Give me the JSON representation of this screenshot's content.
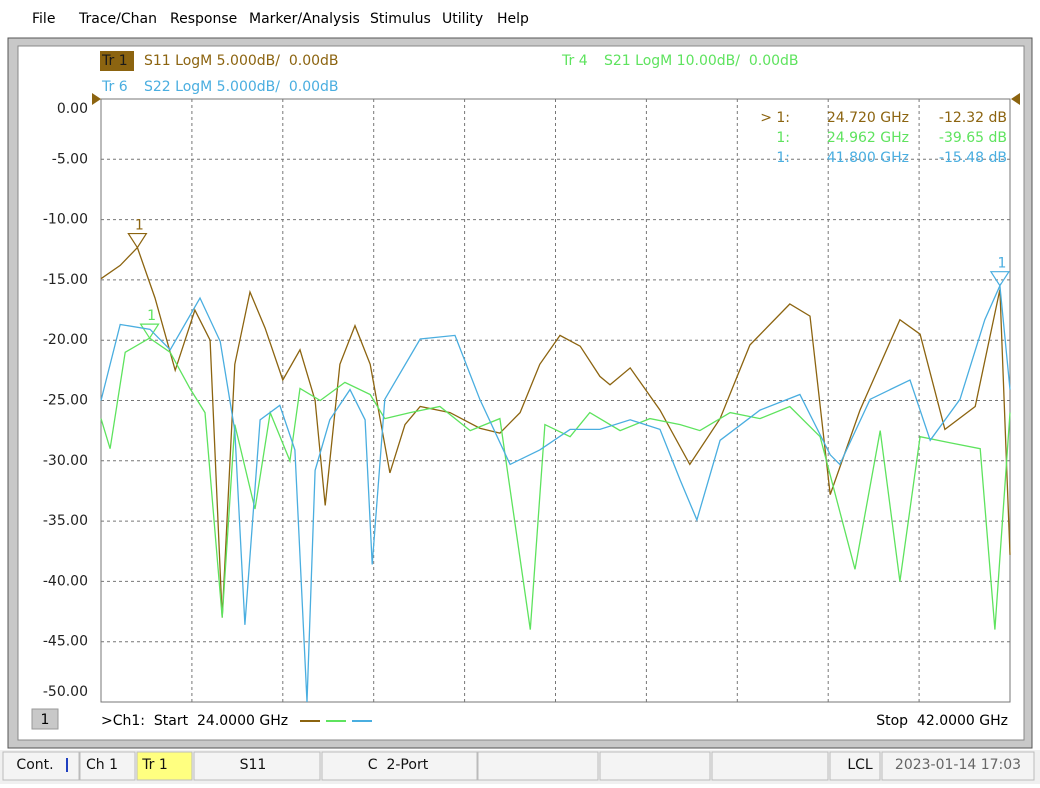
{
  "menu": [
    "File",
    "Trace/Chan",
    "Response",
    "Marker/Analysis",
    "Stimulus",
    "Utility",
    "Help"
  ],
  "chart_data": {
    "type": "line",
    "channel_box": "1",
    "start_label": ">Ch1:  Start  24.0000 GHz",
    "stop_label": "Stop  42.0000 GHz",
    "xlim": [
      24,
      42
    ],
    "xticks": [
      24,
      25.8,
      27.6,
      29.4,
      31.2,
      33,
      34.8,
      36.6,
      38.4,
      40.2,
      42
    ],
    "ylim": [
      -50,
      0
    ],
    "yticks": [
      {
        "value": 0,
        "label": "0.00"
      },
      {
        "value": -5,
        "label": "-5.00"
      },
      {
        "value": -10,
        "label": "-10.00"
      },
      {
        "value": -15,
        "label": "-15.00"
      },
      {
        "value": -20,
        "label": "-20.00"
      },
      {
        "value": -25,
        "label": "-25.00"
      },
      {
        "value": -30,
        "label": "-30.00"
      },
      {
        "value": -35,
        "label": "-35.00"
      },
      {
        "value": -40,
        "label": "-40.00"
      },
      {
        "value": -45,
        "label": "-45.00"
      },
      {
        "value": -50,
        "label": "-50.00"
      }
    ],
    "y2lim": [
      -100,
      0
    ],
    "grid": true,
    "series": [
      {
        "trace": "Tr 1",
        "name": "S11 LogM 5.000dB/  0.00dB",
        "color": "#8c6410",
        "x": [
          24.0,
          24.38,
          24.72,
          25.07,
          25.47,
          25.86,
          26.16,
          26.4,
          26.65,
          26.95,
          27.25,
          27.6,
          27.94,
          28.24,
          28.44,
          28.73,
          29.03,
          29.33,
          29.72,
          30.02,
          30.32,
          30.91,
          31.5,
          31.9,
          32.3,
          32.69,
          33.09,
          33.49,
          33.88,
          34.08,
          34.48,
          35.07,
          35.66,
          36.26,
          36.85,
          37.64,
          38.04,
          38.44,
          39.03,
          39.82,
          40.22,
          40.71,
          41.31,
          41.8,
          42.0
        ],
        "values": [
          -14.9,
          -13.8,
          -12.32,
          -16.5,
          -22.5,
          -17.5,
          -20,
          -43,
          -22,
          -16,
          -19,
          -23.3,
          -20.8,
          -25,
          -33.7,
          -22,
          -18.8,
          -22,
          -31,
          -27,
          -25.5,
          -26,
          -27.3,
          -27.7,
          -26,
          -22,
          -19.6,
          -20.5,
          -23,
          -23.7,
          -22.3,
          -25.8,
          -30.3,
          -26.5,
          -20.4,
          -17,
          -18,
          -32.8,
          -25.8,
          -18.3,
          -19.5,
          -27.4,
          -25.5,
          -15.8,
          -37.8
        ],
        "marker": {
          "name": "1",
          "prefix": "> 1:",
          "x": 24.72,
          "x_label": "24.720 GHz",
          "value": -12.32,
          "value_label": "-12.32 dB"
        }
      },
      {
        "trace": "Tr 4",
        "name": "S21 LogM 10.00dB/  0.00dB",
        "color": "#5ee35e",
        "axis": "y2",
        "x": [
          24.0,
          24.18,
          24.48,
          24.962,
          25.37,
          25.76,
          26.06,
          26.4,
          26.65,
          27.05,
          27.35,
          27.74,
          27.94,
          28.34,
          28.83,
          29.33,
          29.62,
          30.12,
          30.71,
          31.31,
          31.9,
          32.5,
          32.79,
          33.29,
          33.68,
          34.28,
          34.87,
          35.47,
          35.86,
          36.46,
          37.05,
          37.64,
          38.24,
          38.93,
          39.43,
          39.82,
          40.22,
          40.81,
          41.41,
          41.7,
          42.0
        ],
        "values": [
          -53,
          -58,
          -42,
          -39.65,
          -42,
          -48,
          -52,
          -86,
          -54,
          -68,
          -52,
          -60,
          -48,
          -50,
          -47,
          -49,
          -53,
          -52,
          -51,
          -55,
          -53,
          -88,
          -54,
          -56,
          -52,
          -55,
          -53,
          -54,
          -55,
          -52,
          -53,
          -51,
          -56,
          -78,
          -55,
          -80,
          -56,
          -57,
          -58,
          -88,
          -52
        ],
        "marker": {
          "name": "1",
          "prefix": "1:",
          "x": 24.962,
          "x_label": "24.962 GHz",
          "value": -39.65,
          "value_label": "-39.65 dB"
        }
      },
      {
        "trace": "Tr 6",
        "name": "S22 LogM 5.000dB/  0.00dB",
        "color": "#4aaee0",
        "x": [
          24.0,
          24.38,
          24.97,
          25.37,
          25.96,
          26.36,
          26.65,
          26.85,
          27.15,
          27.54,
          27.84,
          28.08,
          28.24,
          28.53,
          28.93,
          29.23,
          29.37,
          29.62,
          30.32,
          31.01,
          31.5,
          32.1,
          32.69,
          33.29,
          33.88,
          34.48,
          35.07,
          35.47,
          35.8,
          36.26,
          37.05,
          37.84,
          38.44,
          38.63,
          39.23,
          40.02,
          40.42,
          41.01,
          41.5,
          41.8,
          42.0
        ],
        "values": [
          -25,
          -18.7,
          -19.1,
          -20.8,
          -16.5,
          -20.1,
          -27.5,
          -43.6,
          -26.6,
          -25.4,
          -29.1,
          -50,
          -30.8,
          -26.6,
          -24.1,
          -26.6,
          -38.6,
          -24.9,
          -19.9,
          -19.6,
          -24.9,
          -30.3,
          -29.1,
          -27.4,
          -27.4,
          -26.6,
          -27.4,
          -31.6,
          -34.9,
          -28.3,
          -25.8,
          -24.5,
          -29.5,
          -30.3,
          -24.9,
          -23.3,
          -28.3,
          -24.9,
          -18.3,
          -15.48,
          -24.1
        ],
        "marker": {
          "name": "1",
          "prefix": "1:",
          "x": 41.8,
          "x_label": "41.800 GHz",
          "value": -15.48,
          "value_label": "-15.48 dB"
        }
      }
    ]
  },
  "status": [
    "Cont.",
    "Ch 1",
    "Tr 1",
    "S11",
    "C  2-Port",
    "LCL",
    "2023-01-14 17:03"
  ]
}
